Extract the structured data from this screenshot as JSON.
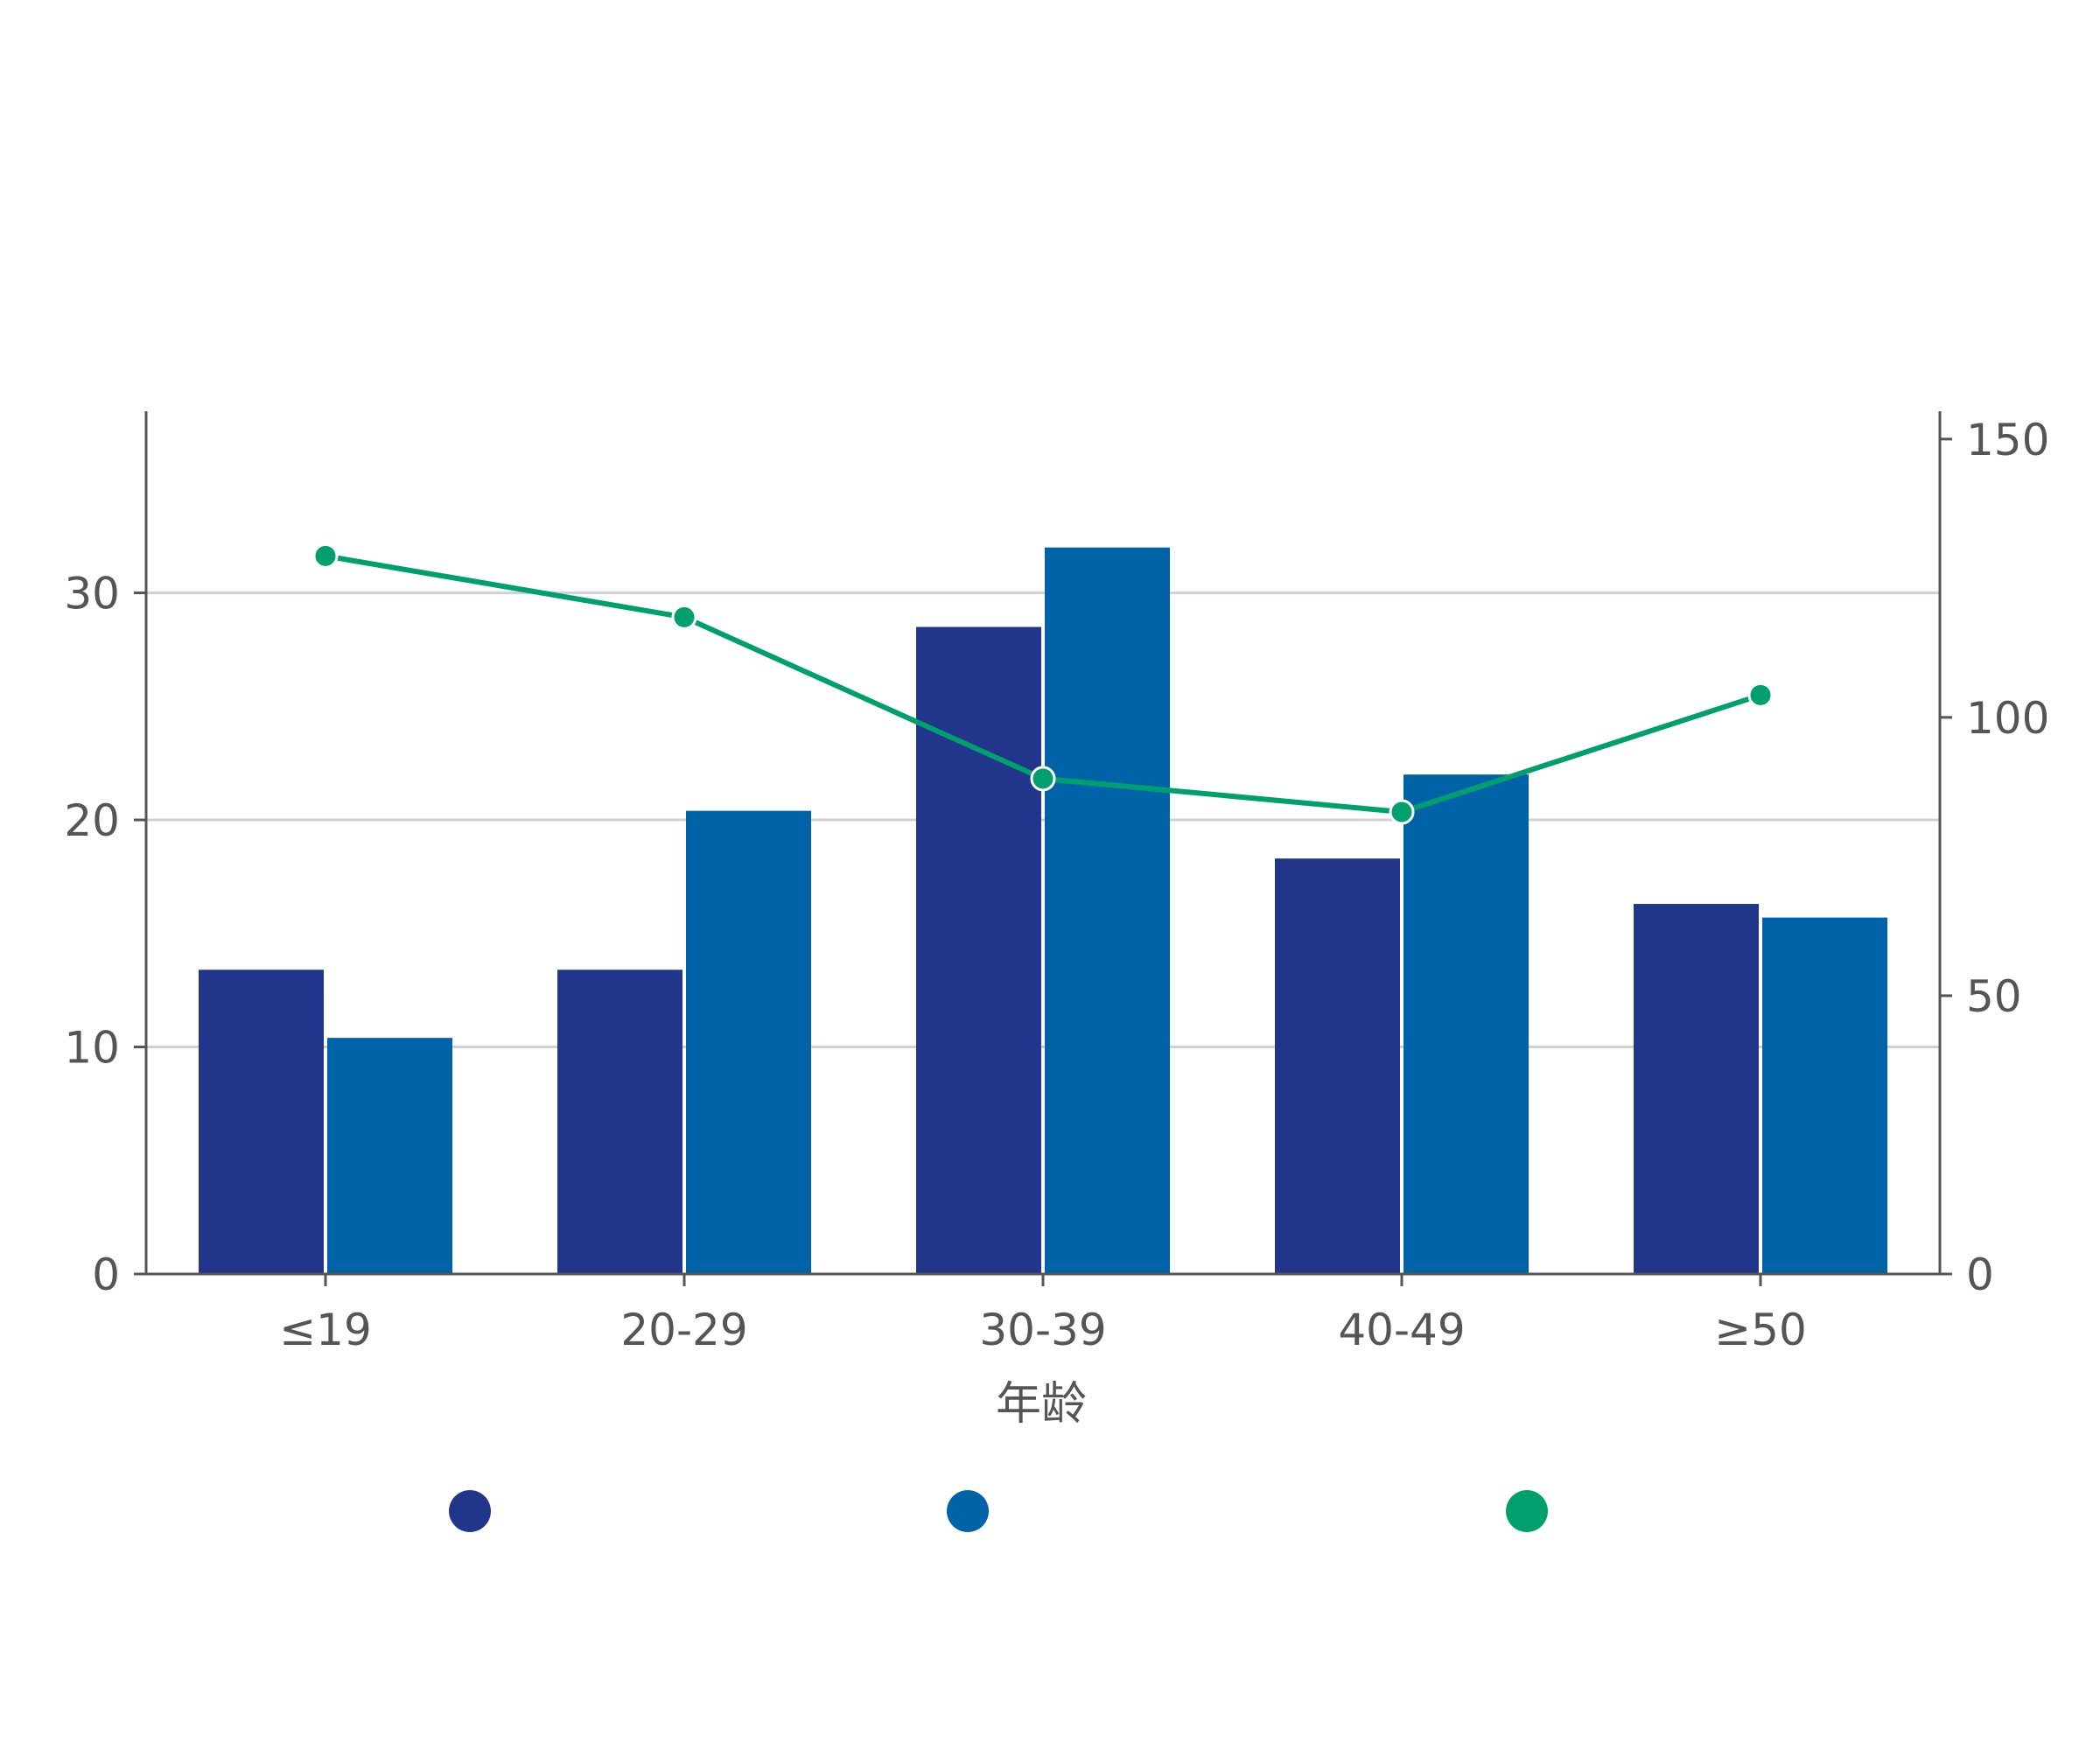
{
  "chart_data": {
    "type": "bar",
    "title": "",
    "xlabel": "年龄",
    "categories": [
      "≤19",
      "20-29",
      "30-39",
      "40-49",
      "≥50"
    ],
    "series": [
      {
        "type": "bar",
        "axis": "left",
        "color": "#21358a",
        "values": [
          13.4,
          13.4,
          28.5,
          18.3,
          16.3
        ]
      },
      {
        "type": "bar",
        "axis": "left",
        "color": "#0063a8",
        "values": [
          10.4,
          20.4,
          32.0,
          22.0,
          15.7
        ]
      },
      {
        "type": "line",
        "axis": "right",
        "color": "#00a06e",
        "values": [
          129,
          118,
          89,
          83,
          104
        ]
      }
    ],
    "left_axis": {
      "ylim": [
        0,
        38
      ],
      "ticks": [
        "0",
        "10",
        "20",
        "30"
      ]
    },
    "right_axis": {
      "ylim": [
        0,
        155
      ],
      "ticks": [
        "0",
        "50",
        "100",
        "150"
      ]
    },
    "grid": true,
    "legend": {
      "placement": "bottom",
      "colors": [
        "#21358a",
        "#0063a8",
        "#00a06e"
      ]
    }
  }
}
